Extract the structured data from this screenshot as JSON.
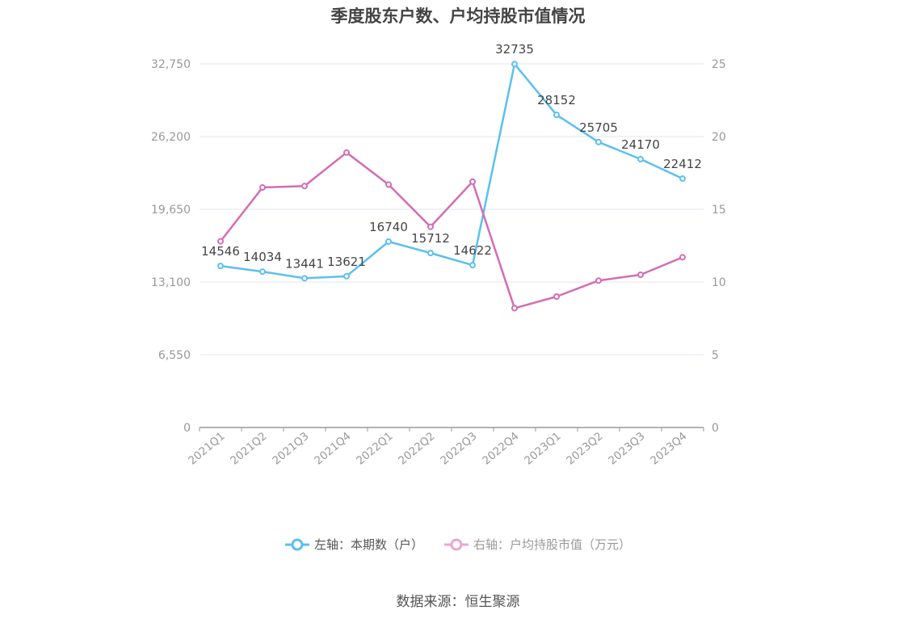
{
  "title": "季度股东户数、户均持股市值情况",
  "source": "数据来源：恒生聚源",
  "legend": {
    "left": "左轴：本期数（户）",
    "right": "右轴：户均持股市值（万元）"
  },
  "colors": {
    "left": "#5bc0f0",
    "right": "#d46cb3",
    "grid": "#e0e4f0",
    "axis": "#999999"
  },
  "chart_data": {
    "type": "line",
    "categories": [
      "2021Q1",
      "2021Q2",
      "2021Q3",
      "2021Q4",
      "2022Q1",
      "2022Q2",
      "2022Q3",
      "2022Q4",
      "2023Q1",
      "2023Q2",
      "2023Q3",
      "2023Q4"
    ],
    "series": [
      {
        "name": "左轴：本期数（户）",
        "axis": "left",
        "values": [
          14546,
          14034,
          13441,
          13621,
          16740,
          15712,
          14622,
          32735,
          28152,
          25705,
          24170,
          22412
        ]
      },
      {
        "name": "右轴：户均持股市值（万元）",
        "axis": "right",
        "values": [
          12.8,
          16.5,
          16.6,
          18.9,
          16.7,
          13.8,
          16.9,
          8.2,
          9.0,
          10.1,
          10.5,
          11.7
        ]
      }
    ],
    "y_left": {
      "min": 0,
      "max": 32750,
      "ticks": [
        0,
        6550,
        13100,
        19650,
        26200,
        32750
      ],
      "tick_labels": [
        "0",
        "6,550",
        "13,100",
        "19,650",
        "26,200",
        "32,750"
      ]
    },
    "y_right": {
      "min": 0,
      "max": 25,
      "ticks": [
        0,
        5,
        10,
        15,
        20,
        25
      ],
      "tick_labels": [
        "0",
        "5",
        "10",
        "15",
        "20",
        "25"
      ]
    },
    "grid": true,
    "legend_position": "bottom"
  }
}
